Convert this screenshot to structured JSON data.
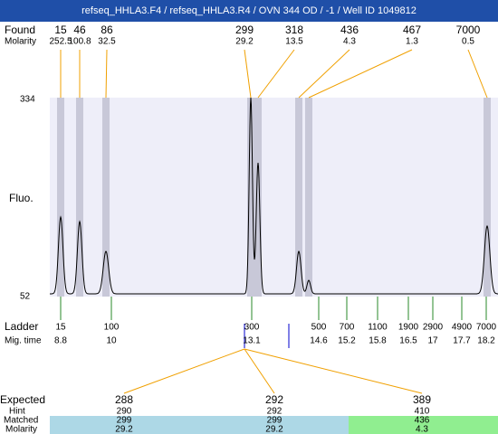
{
  "header": {
    "title": "refseq_HHLA3.F4 / refseq_HHLA3.R4 / OVN 344 OD / -1 / Well ID 1049812"
  },
  "found": {
    "label": "Found",
    "molarity_label": "Molarity",
    "peaks": [
      {
        "size": "15",
        "molarity": "252.5"
      },
      {
        "size": "46",
        "molarity": "100.8"
      },
      {
        "size": "86",
        "molarity": "32.5"
      },
      {
        "size": "299",
        "molarity": "29.2"
      },
      {
        "size": "318",
        "molarity": "13.5"
      },
      {
        "size": "436",
        "molarity": "4.3"
      },
      {
        "size": "467",
        "molarity": "1.3"
      },
      {
        "size": "7000",
        "molarity": "0.5"
      }
    ]
  },
  "plot": {
    "y_label": "Fluo.",
    "y_max": "334",
    "y_min": "52"
  },
  "ladder": {
    "label": "Ladder",
    "time_label": "Mig. time",
    "items": [
      {
        "size": "15",
        "time": "8.8"
      },
      {
        "size": "100",
        "time": "10"
      },
      {
        "size": "300",
        "time": "13.1"
      },
      {
        "size": "500",
        "time": "14.6"
      },
      {
        "size": "700",
        "time": "15.2"
      },
      {
        "size": "1100",
        "time": "15.8"
      },
      {
        "size": "1900",
        "time": "16.5"
      },
      {
        "size": "2900",
        "time": "17"
      },
      {
        "size": "4900",
        "time": "17.7"
      },
      {
        "size": "7000",
        "time": "18.2"
      }
    ]
  },
  "expected": {
    "labels": [
      "Expected",
      "Hint",
      "Matched",
      "Molarity"
    ],
    "columns": [
      {
        "expected": "288",
        "hint": "290",
        "matched": "299",
        "molarity": "29.2"
      },
      {
        "expected": "292",
        "hint": "292",
        "matched": "299",
        "molarity": "29.2"
      },
      {
        "expected": "389",
        "hint": "410",
        "matched": "436",
        "molarity": "4.3"
      }
    ]
  }
}
